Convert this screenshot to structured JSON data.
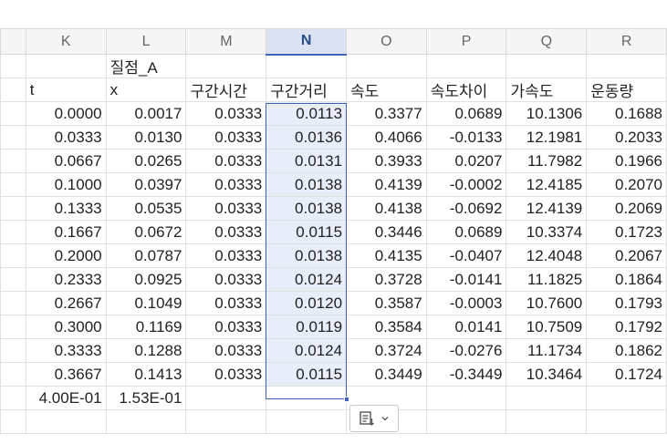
{
  "columns": [
    "K",
    "L",
    "M",
    "N",
    "O",
    "P",
    "Q",
    "R"
  ],
  "selected_column": "N",
  "title_row": [
    "",
    "질점_A",
    "",
    "",
    "",
    "",
    "",
    ""
  ],
  "header_row": [
    "t",
    "x",
    "구간시간",
    "구간거리",
    "속도",
    "속도차이",
    "가속도",
    "운동량"
  ],
  "data_rows": [
    [
      "0.0000",
      "0.0017",
      "0.0333",
      "0.0113",
      "0.3377",
      "0.0689",
      "10.1306",
      "0.1688"
    ],
    [
      "0.0333",
      "0.0130",
      "0.0333",
      "0.0136",
      "0.4066",
      "-0.0133",
      "12.1981",
      "0.2033"
    ],
    [
      "0.0667",
      "0.0265",
      "0.0333",
      "0.0131",
      "0.3933",
      "0.0207",
      "11.7982",
      "0.1966"
    ],
    [
      "0.1000",
      "0.0397",
      "0.0333",
      "0.0138",
      "0.4139",
      "-0.0002",
      "12.4185",
      "0.2070"
    ],
    [
      "0.1333",
      "0.0535",
      "0.0333",
      "0.0138",
      "0.4138",
      "-0.0692",
      "12.4139",
      "0.2069"
    ],
    [
      "0.1667",
      "0.0672",
      "0.0333",
      "0.0115",
      "0.3446",
      "0.0689",
      "10.3374",
      "0.1723"
    ],
    [
      "0.2000",
      "0.0787",
      "0.0333",
      "0.0138",
      "0.4135",
      "-0.0407",
      "12.4048",
      "0.2067"
    ],
    [
      "0.2333",
      "0.0925",
      "0.0333",
      "0.0124",
      "0.3728",
      "-0.0141",
      "11.1825",
      "0.1864"
    ],
    [
      "0.2667",
      "0.1049",
      "0.0333",
      "0.0120",
      "0.3587",
      "-0.0003",
      "10.7600",
      "0.1793"
    ],
    [
      "0.3000",
      "0.1169",
      "0.0333",
      "0.0119",
      "0.3584",
      "0.0141",
      "10.7509",
      "0.1792"
    ],
    [
      "0.3333",
      "0.1288",
      "0.0333",
      "0.0124",
      "0.3724",
      "-0.0276",
      "11.1734",
      "0.1862"
    ],
    [
      "0.3667",
      "0.1413",
      "0.0333",
      "0.0115",
      "0.3449",
      "-0.3449",
      "10.3464",
      "0.1724"
    ]
  ],
  "summary_row": [
    "4.00E-01",
    "1.53E-01",
    "",
    "",
    "",
    "",
    "",
    ""
  ],
  "paste_options": {
    "icon": "paste-options-icon",
    "arrow": "chevron-down-icon"
  },
  "colors": {
    "selection": "#3d66b8",
    "selection_fill": "#e8eef9",
    "gridline": "#e1e1e1"
  }
}
